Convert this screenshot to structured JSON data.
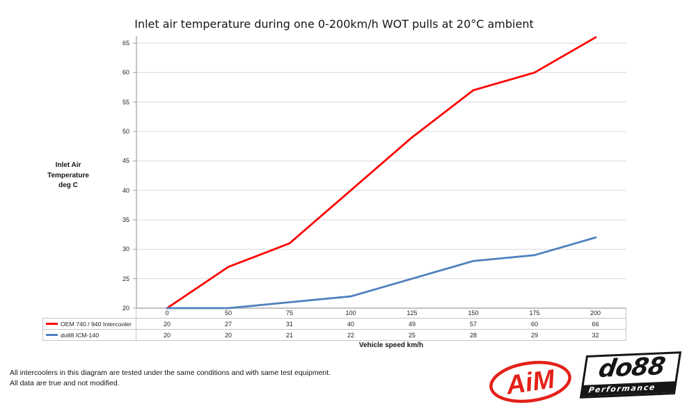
{
  "chart_data": {
    "type": "line",
    "title": "Inlet air temperature during one 0-200km/h WOT pulls at 20°C ambient",
    "xlabel": "Vehicle speed km/h",
    "ylabel_lines": [
      "Inlet Air",
      "Temperature",
      "deg C"
    ],
    "categories": [
      "0",
      "50",
      "75",
      "100",
      "125",
      "150",
      "175",
      "200"
    ],
    "series": [
      {
        "name": "OEM 740 / 940 Intercooler",
        "color": "#fe0000",
        "values": [
          20,
          27,
          31,
          40,
          49,
          57,
          60,
          66
        ]
      },
      {
        "name": "do88 ICM-140",
        "color": "#4f81bd",
        "values": [
          20,
          20,
          21,
          22,
          25,
          28,
          29,
          32
        ]
      }
    ],
    "ylim": [
      20,
      65
    ],
    "ytick_step": 5,
    "grid": "horizontal",
    "legend_position": "table-left",
    "colors": {
      "gridline": "#d9d9d9",
      "axis": "#9e9e9e",
      "table_border": "#c6c6c6"
    }
  },
  "notes": [
    "All intercoolers in this diagram are tested under the same conditions and with same test equipment.",
    "All data are true and not modified."
  ],
  "logos": {
    "aim": {
      "text": "AiM",
      "color": "#e32119"
    },
    "do88": {
      "text": "do88",
      "subtext": "Performance",
      "color": "#161616"
    }
  }
}
